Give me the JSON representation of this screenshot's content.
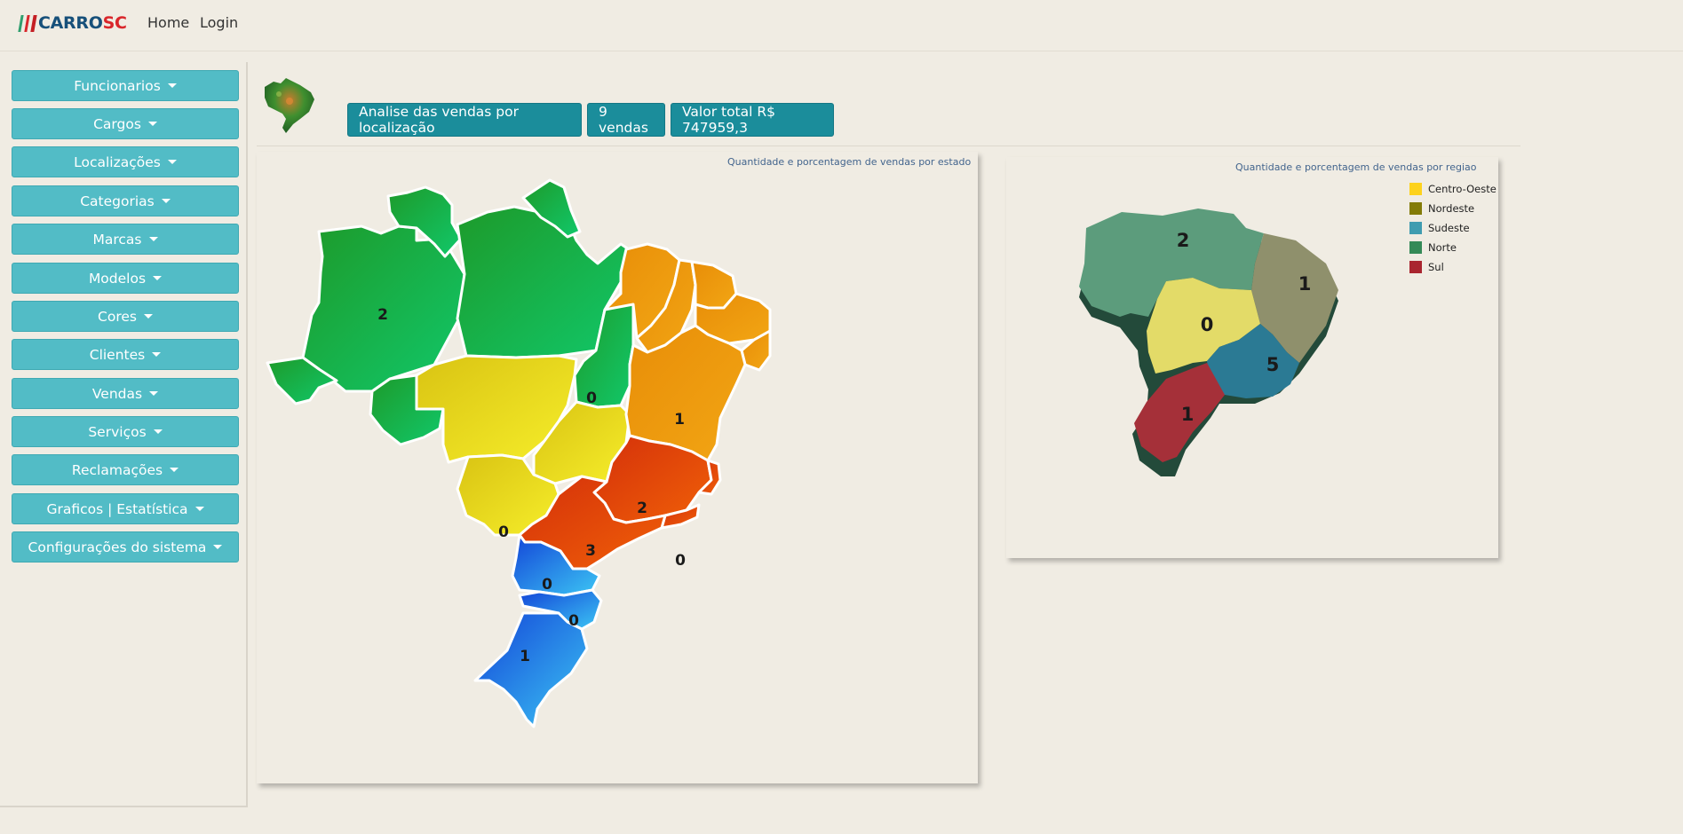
{
  "navbar": {
    "brand_a": "CARRO",
    "brand_b": "SC",
    "links": [
      "Home",
      "Login"
    ]
  },
  "sidebar": {
    "items": [
      {
        "label": "Funcionarios"
      },
      {
        "label": "Cargos"
      },
      {
        "label": "Localizações"
      },
      {
        "label": "Categorias"
      },
      {
        "label": "Marcas"
      },
      {
        "label": "Modelos"
      },
      {
        "label": "Cores"
      },
      {
        "label": "Clientes"
      },
      {
        "label": "Vendas"
      },
      {
        "label": "Serviços"
      },
      {
        "label": "Reclamações"
      },
      {
        "label": "Graficos | Estatística"
      },
      {
        "label": "Configurações do sistema"
      }
    ]
  },
  "header": {
    "analysis_label": "Analise das vendas por localização",
    "sales_count": "9 vendas",
    "total_value": "Valor total R$ 747959,3"
  },
  "state_map": {
    "title": "Quantidade e porcentagem de vendas por estado",
    "values": {
      "north_west": "2",
      "tocantins": "0",
      "bahia": "1",
      "minas_gerais": "2",
      "sao_paulo": "3",
      "rio_de_janeiro": "0",
      "mato_grosso_do_sul": "0",
      "parana": "0",
      "santa_catarina": "0",
      "rio_grande_do_sul": "1"
    },
    "colors": {
      "norte": "#1fb04a",
      "centro_oeste": "#e9df16",
      "nordeste": "#ee9a09",
      "sudeste": "#e24d06",
      "sul": "#1d6fe0"
    }
  },
  "region_map": {
    "title": "Quantidade e porcentagem de vendas por regiao",
    "values": {
      "norte": "2",
      "nordeste": "1",
      "centro_oeste": "0",
      "sudeste": "5",
      "sul": "1"
    },
    "legend": [
      {
        "label": "Centro-Oeste",
        "color": "#fdd21c"
      },
      {
        "label": "Nordeste",
        "color": "#837b07"
      },
      {
        "label": "Sudeste",
        "color": "#3f9cb0"
      },
      {
        "label": "Norte",
        "color": "#348a57"
      },
      {
        "label": "Sul",
        "color": "#a9252f"
      }
    ]
  }
}
